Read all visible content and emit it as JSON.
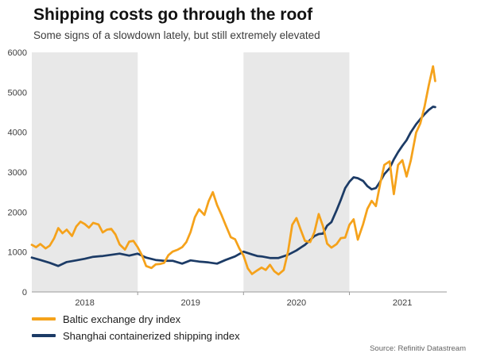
{
  "chart_data": {
    "type": "line",
    "title": "Shipping costs go through the roof",
    "subtitle": "Some signs of a slowdown lately, but still extremely elevated",
    "source": "Source: Refinitiv Datastream",
    "x_domain": [
      2018.0,
      2021.92
    ],
    "y_domain": [
      0,
      6000
    ],
    "y_ticks": [
      0,
      1000,
      2000,
      3000,
      4000,
      5000,
      6000
    ],
    "x_ticks": [
      {
        "label": "2018",
        "x": 2018.5
      },
      {
        "label": "2019",
        "x": 2019.5
      },
      {
        "label": "2020",
        "x": 2020.5
      },
      {
        "label": "2021",
        "x": 2021.5
      }
    ],
    "x_tick_marks": [
      2019,
      2020,
      2021
    ],
    "shaded_bands": [
      [
        2018,
        2019
      ],
      [
        2020,
        2021
      ]
    ],
    "band_color": "#e8e8e8",
    "grid": false,
    "legend_position": "bottom-left",
    "axis_color": "#9a9a9a",
    "series": [
      {
        "name": "Baltic exchange dry index",
        "color": "#F5A21B",
        "points": [
          [
            2018.0,
            1180
          ],
          [
            2018.04,
            1120
          ],
          [
            2018.08,
            1200
          ],
          [
            2018.13,
            1090
          ],
          [
            2018.17,
            1160
          ],
          [
            2018.21,
            1340
          ],
          [
            2018.25,
            1600
          ],
          [
            2018.29,
            1470
          ],
          [
            2018.33,
            1560
          ],
          [
            2018.38,
            1400
          ],
          [
            2018.42,
            1640
          ],
          [
            2018.46,
            1760
          ],
          [
            2018.5,
            1700
          ],
          [
            2018.54,
            1610
          ],
          [
            2018.58,
            1730
          ],
          [
            2018.63,
            1690
          ],
          [
            2018.67,
            1490
          ],
          [
            2018.71,
            1560
          ],
          [
            2018.75,
            1580
          ],
          [
            2018.79,
            1440
          ],
          [
            2018.83,
            1190
          ],
          [
            2018.88,
            1060
          ],
          [
            2018.92,
            1260
          ],
          [
            2018.96,
            1280
          ],
          [
            2019.0,
            1120
          ],
          [
            2019.04,
            920
          ],
          [
            2019.08,
            650
          ],
          [
            2019.13,
            600
          ],
          [
            2019.17,
            690
          ],
          [
            2019.21,
            700
          ],
          [
            2019.25,
            730
          ],
          [
            2019.29,
            920
          ],
          [
            2019.33,
            1010
          ],
          [
            2019.38,
            1060
          ],
          [
            2019.42,
            1120
          ],
          [
            2019.46,
            1250
          ],
          [
            2019.5,
            1500
          ],
          [
            2019.54,
            1870
          ],
          [
            2019.58,
            2070
          ],
          [
            2019.63,
            1930
          ],
          [
            2019.67,
            2270
          ],
          [
            2019.71,
            2500
          ],
          [
            2019.75,
            2180
          ],
          [
            2019.79,
            1940
          ],
          [
            2019.83,
            1680
          ],
          [
            2019.88,
            1370
          ],
          [
            2019.92,
            1320
          ],
          [
            2019.96,
            1090
          ],
          [
            2020.0,
            910
          ],
          [
            2020.04,
            590
          ],
          [
            2020.08,
            450
          ],
          [
            2020.13,
            540
          ],
          [
            2020.17,
            610
          ],
          [
            2020.21,
            550
          ],
          [
            2020.25,
            680
          ],
          [
            2020.29,
            520
          ],
          [
            2020.33,
            440
          ],
          [
            2020.38,
            550
          ],
          [
            2020.42,
            1010
          ],
          [
            2020.46,
            1680
          ],
          [
            2020.5,
            1850
          ],
          [
            2020.54,
            1560
          ],
          [
            2020.58,
            1280
          ],
          [
            2020.63,
            1250
          ],
          [
            2020.67,
            1500
          ],
          [
            2020.71,
            1950
          ],
          [
            2020.75,
            1650
          ],
          [
            2020.79,
            1210
          ],
          [
            2020.83,
            1110
          ],
          [
            2020.88,
            1200
          ],
          [
            2020.92,
            1350
          ],
          [
            2020.96,
            1360
          ],
          [
            2021.0,
            1680
          ],
          [
            2021.04,
            1820
          ],
          [
            2021.08,
            1310
          ],
          [
            2021.13,
            1700
          ],
          [
            2021.17,
            2080
          ],
          [
            2021.21,
            2280
          ],
          [
            2021.25,
            2150
          ],
          [
            2021.29,
            2700
          ],
          [
            2021.33,
            3180
          ],
          [
            2021.38,
            3270
          ],
          [
            2021.42,
            2450
          ],
          [
            2021.46,
            3180
          ],
          [
            2021.5,
            3300
          ],
          [
            2021.54,
            2890
          ],
          [
            2021.58,
            3290
          ],
          [
            2021.63,
            3990
          ],
          [
            2021.67,
            4220
          ],
          [
            2021.71,
            4640
          ],
          [
            2021.75,
            5180
          ],
          [
            2021.79,
            5650
          ],
          [
            2021.81,
            5280
          ]
        ]
      },
      {
        "name": "Shanghai containerized shipping index",
        "color": "#1C3B66",
        "points": [
          [
            2018.0,
            860
          ],
          [
            2018.08,
            800
          ],
          [
            2018.17,
            730
          ],
          [
            2018.25,
            650
          ],
          [
            2018.33,
            750
          ],
          [
            2018.42,
            790
          ],
          [
            2018.5,
            830
          ],
          [
            2018.58,
            880
          ],
          [
            2018.67,
            900
          ],
          [
            2018.75,
            930
          ],
          [
            2018.83,
            960
          ],
          [
            2018.92,
            910
          ],
          [
            2019.0,
            960
          ],
          [
            2019.08,
            860
          ],
          [
            2019.17,
            800
          ],
          [
            2019.25,
            780
          ],
          [
            2019.33,
            780
          ],
          [
            2019.42,
            710
          ],
          [
            2019.5,
            790
          ],
          [
            2019.58,
            760
          ],
          [
            2019.67,
            740
          ],
          [
            2019.75,
            710
          ],
          [
            2019.83,
            800
          ],
          [
            2019.92,
            890
          ],
          [
            2020.0,
            1010
          ],
          [
            2020.08,
            940
          ],
          [
            2020.13,
            900
          ],
          [
            2020.17,
            890
          ],
          [
            2020.25,
            850
          ],
          [
            2020.33,
            850
          ],
          [
            2020.42,
            930
          ],
          [
            2020.5,
            1040
          ],
          [
            2020.58,
            1180
          ],
          [
            2020.67,
            1400
          ],
          [
            2020.71,
            1450
          ],
          [
            2020.75,
            1460
          ],
          [
            2020.79,
            1660
          ],
          [
            2020.83,
            1750
          ],
          [
            2020.88,
            2050
          ],
          [
            2020.92,
            2310
          ],
          [
            2020.96,
            2600
          ],
          [
            2021.0,
            2760
          ],
          [
            2021.04,
            2870
          ],
          [
            2021.08,
            2850
          ],
          [
            2021.13,
            2780
          ],
          [
            2021.17,
            2650
          ],
          [
            2021.21,
            2570
          ],
          [
            2021.25,
            2600
          ],
          [
            2021.29,
            2760
          ],
          [
            2021.33,
            2950
          ],
          [
            2021.38,
            3100
          ],
          [
            2021.42,
            3320
          ],
          [
            2021.46,
            3500
          ],
          [
            2021.5,
            3660
          ],
          [
            2021.54,
            3800
          ],
          [
            2021.58,
            4000
          ],
          [
            2021.63,
            4200
          ],
          [
            2021.67,
            4330
          ],
          [
            2021.71,
            4450
          ],
          [
            2021.75,
            4560
          ],
          [
            2021.79,
            4640
          ],
          [
            2021.81,
            4630
          ]
        ]
      }
    ]
  }
}
